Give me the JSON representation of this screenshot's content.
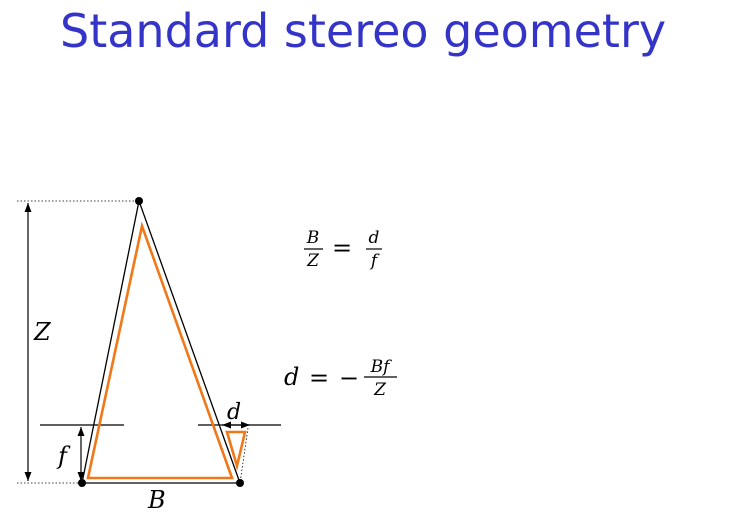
{
  "title": "Standard stereo geometry",
  "colors": {
    "title": "#3434c8",
    "outer_triangle": "#000000",
    "inner_triangle": "#f07818",
    "guides": "#000000"
  },
  "labels": {
    "depth": "Z",
    "focal_length": "f",
    "baseline": "B",
    "disparity": "d"
  },
  "equations": {
    "similar_triangles": {
      "lhs_num": "B",
      "lhs_den": "Z",
      "equals": "=",
      "rhs_num": "d",
      "rhs_den": "f"
    },
    "disparity": {
      "lhs": "d",
      "equals": "=",
      "minus": "−",
      "num": "Bf",
      "den": "Z"
    }
  }
}
